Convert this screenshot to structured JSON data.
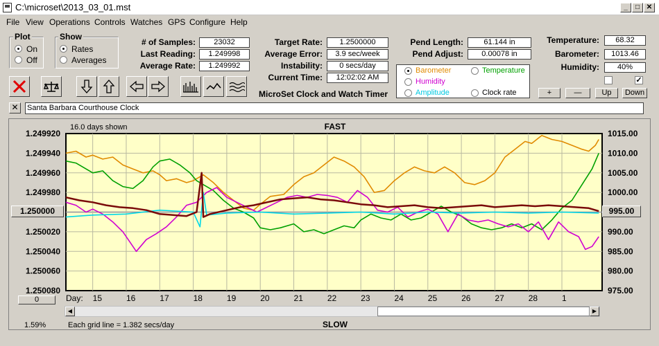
{
  "window": {
    "title": "C:\\microset\\2013_03_01.mst"
  },
  "menu": [
    "File",
    "View",
    "Operations",
    "Controls",
    "Watches",
    "GPS",
    "Configure",
    "Help"
  ],
  "plot_group": {
    "title": "Plot",
    "on": "On",
    "off": "Off",
    "selected": "On"
  },
  "show_group": {
    "title": "Show",
    "rates": "Rates",
    "averages": "Averages",
    "selected": "Rates"
  },
  "stats": {
    "samples_label": "# of Samples:",
    "samples": "23032",
    "last_label": "Last Reading:",
    "last": "1.249998",
    "avg_label": "Average Rate:",
    "avg": "1.249992",
    "target_label": "Target Rate:",
    "target": "1.2500000",
    "averr_label": "Average Error:",
    "averr": "3.9 sec/week",
    "instab_label": "Instability:",
    "instab": "0 secs/day",
    "time_label": "Current Time:",
    "time": "12:02:02 AM",
    "pendlen_label": "Pend Length:",
    "pendlen": "61.144 in",
    "pendadj_label": "Pend Adjust:",
    "pendadj": "0.00078 in",
    "temp_label": "Temperature:",
    "temp": "68.32",
    "baro_label": "Barometer:",
    "baro": "1013.46",
    "hum_label": "Humidity:",
    "hum": "40%"
  },
  "app_subtitle": "MicroSet Clock and Watch Timer",
  "sensor_select": {
    "selected": "Barometer",
    "items": [
      {
        "label": "Barometer",
        "color": "#e08a00"
      },
      {
        "label": "Temperature",
        "color": "#00a000"
      },
      {
        "label": "Humidity",
        "color": "#d000d0"
      },
      {
        "label": "Amplitude",
        "color": "#00c8e0"
      },
      {
        "label": "Clock rate",
        "color": "#000000"
      }
    ]
  },
  "scale_buttons": {
    "plus": "+",
    "minus": "—",
    "up": "Up",
    "down": "Down"
  },
  "clock_name": "Santa Barbara Courthouse Clock",
  "chart_data": {
    "type": "line",
    "title_top": "FAST",
    "title_bottom": "SLOW",
    "days_shown": "16.0 days shown",
    "grid_note": "Each grid line = 1.382 secs/day",
    "percent": "1.59%",
    "left_axis": {
      "ticks": [
        "1.249920",
        "1.249940",
        "1.249960",
        "1.249980",
        "1.250000",
        "1.250020",
        "1.250040",
        "1.250060",
        "1.250080"
      ],
      "center_button": "1.250000",
      "range": [
        1.24992,
        1.25008
      ],
      "reversed": true
    },
    "right_axis": {
      "ticks": [
        "1015.00",
        "1010.00",
        "1005.00",
        "1000.00",
        "995.00",
        "990.00",
        "985.00",
        "980.00",
        "975.00"
      ],
      "center_button": "995.00",
      "range": [
        975,
        1015
      ]
    },
    "x_prefix": "Day:",
    "x_ticks": [
      "15",
      "16",
      "17",
      "18",
      "19",
      "20",
      "21",
      "22",
      "23",
      "24",
      "25",
      "26",
      "27",
      "28",
      "1"
    ],
    "x_range": [
      14.2,
      30.2
    ],
    "bottom_left_button": "0",
    "series": [
      {
        "name": "Barometer",
        "color": "#e08a00",
        "scale": "right",
        "points": [
          [
            14.2,
            1010
          ],
          [
            14.5,
            1010.5
          ],
          [
            14.8,
            1009
          ],
          [
            15.0,
            1009.5
          ],
          [
            15.3,
            1008.5
          ],
          [
            15.6,
            1009
          ],
          [
            15.9,
            1007
          ],
          [
            16.2,
            1006
          ],
          [
            16.5,
            1005
          ],
          [
            16.8,
            1005.5
          ],
          [
            17.0,
            1004.5
          ],
          [
            17.2,
            1003
          ],
          [
            17.5,
            1003.5
          ],
          [
            17.8,
            1002.5
          ],
          [
            18.0,
            1003
          ],
          [
            18.3,
            1004.5
          ],
          [
            18.6,
            1002.5
          ],
          [
            18.9,
            1000
          ],
          [
            19.2,
            998
          ],
          [
            19.5,
            996
          ],
          [
            19.8,
            995.5
          ],
          [
            20.0,
            997
          ],
          [
            20.3,
            999
          ],
          [
            20.7,
            999.5
          ],
          [
            21.0,
            1002
          ],
          [
            21.3,
            1004
          ],
          [
            21.6,
            1005
          ],
          [
            21.9,
            1007
          ],
          [
            22.2,
            1009
          ],
          [
            22.5,
            1008
          ],
          [
            22.8,
            1006.5
          ],
          [
            23.1,
            1004
          ],
          [
            23.4,
            1000
          ],
          [
            23.7,
            1000.5
          ],
          [
            24.0,
            1003
          ],
          [
            24.3,
            1005
          ],
          [
            24.6,
            1006.5
          ],
          [
            24.9,
            1005.5
          ],
          [
            25.2,
            1005
          ],
          [
            25.5,
            1006.5
          ],
          [
            25.8,
            1005
          ],
          [
            26.1,
            1002.5
          ],
          [
            26.4,
            1002
          ],
          [
            26.7,
            1003
          ],
          [
            27.0,
            1005
          ],
          [
            27.3,
            1009
          ],
          [
            27.6,
            1011
          ],
          [
            27.9,
            1013
          ],
          [
            28.1,
            1012.5
          ],
          [
            28.4,
            1014.5
          ],
          [
            28.7,
            1013.5
          ],
          [
            29.0,
            1013
          ],
          [
            29.3,
            1012
          ],
          [
            29.6,
            1011
          ],
          [
            29.8,
            1010.5
          ],
          [
            30.0,
            1012
          ],
          [
            30.1,
            1013.5
          ]
        ]
      },
      {
        "name": "Temperature",
        "color": "#00a000",
        "scale": "right",
        "points": [
          [
            14.2,
            1008
          ],
          [
            14.5,
            1007.5
          ],
          [
            14.8,
            1006
          ],
          [
            15.0,
            1005
          ],
          [
            15.3,
            1005.5
          ],
          [
            15.6,
            1003
          ],
          [
            15.9,
            1001.5
          ],
          [
            16.2,
            1001
          ],
          [
            16.5,
            1003
          ],
          [
            16.8,
            1006.5
          ],
          [
            17.0,
            1008
          ],
          [
            17.3,
            1008.5
          ],
          [
            17.6,
            1007
          ],
          [
            17.9,
            1005
          ],
          [
            18.1,
            1003
          ],
          [
            18.3,
            1002
          ],
          [
            18.6,
            1000.5
          ],
          [
            18.9,
            998
          ],
          [
            19.2,
            996
          ],
          [
            19.5,
            995
          ],
          [
            19.8,
            993.5
          ],
          [
            20.0,
            991
          ],
          [
            20.3,
            990.5
          ],
          [
            20.6,
            991
          ],
          [
            21.0,
            992
          ],
          [
            21.3,
            990
          ],
          [
            21.6,
            990.5
          ],
          [
            21.9,
            989.5
          ],
          [
            22.2,
            990.5
          ],
          [
            22.5,
            991.5
          ],
          [
            22.8,
            991
          ],
          [
            23.0,
            993
          ],
          [
            23.3,
            994.5
          ],
          [
            23.6,
            993.5
          ],
          [
            23.9,
            993
          ],
          [
            24.2,
            994.5
          ],
          [
            24.5,
            993
          ],
          [
            24.8,
            993.5
          ],
          [
            25.1,
            995
          ],
          [
            25.4,
            996.5
          ],
          [
            25.7,
            995
          ],
          [
            26.0,
            994
          ],
          [
            26.3,
            992
          ],
          [
            26.6,
            991
          ],
          [
            26.9,
            990.5
          ],
          [
            27.2,
            991
          ],
          [
            27.5,
            992
          ],
          [
            27.8,
            991
          ],
          [
            28.1,
            992
          ],
          [
            28.4,
            990.5
          ],
          [
            28.7,
            993
          ],
          [
            29.0,
            996
          ],
          [
            29.3,
            998
          ],
          [
            29.6,
            1002
          ],
          [
            29.9,
            1006
          ],
          [
            30.1,
            1010
          ]
        ]
      },
      {
        "name": "Humidity",
        "color": "#d000d0",
        "scale": "left",
        "points": [
          [
            14.2,
            1.24999
          ],
          [
            14.5,
            1.249993
          ],
          [
            14.8,
            1.25
          ],
          [
            15.0,
            1.249997
          ],
          [
            15.3,
            1.250002
          ],
          [
            15.6,
            1.25001
          ],
          [
            15.9,
            1.25002
          ],
          [
            16.1,
            1.25003
          ],
          [
            16.3,
            1.25004
          ],
          [
            16.6,
            1.250028
          ],
          [
            16.9,
            1.250022
          ],
          [
            17.2,
            1.250015
          ],
          [
            17.5,
            1.250005
          ],
          [
            17.8,
            1.249993
          ],
          [
            18.1,
            1.24999
          ],
          [
            18.4,
            1.24998
          ],
          [
            18.7,
            1.249975
          ],
          [
            19.0,
            1.249985
          ],
          [
            19.3,
            1.24999
          ],
          [
            19.6,
            1.249995
          ],
          [
            19.9,
            1.25
          ],
          [
            20.2,
            1.249995
          ],
          [
            20.5,
            1.24999
          ],
          [
            20.8,
            1.249985
          ],
          [
            21.1,
            1.249983
          ],
          [
            21.4,
            1.249985
          ],
          [
            21.7,
            1.249982
          ],
          [
            22.0,
            1.249983
          ],
          [
            22.3,
            1.249985
          ],
          [
            22.6,
            1.24999
          ],
          [
            22.9,
            1.249978
          ],
          [
            23.2,
            1.249985
          ],
          [
            23.5,
            1.249998
          ],
          [
            23.8,
            1.25
          ],
          [
            24.1,
            1.249995
          ],
          [
            24.4,
            1.250005
          ],
          [
            24.7,
            1.25
          ],
          [
            25.0,
            1.249997
          ],
          [
            25.3,
            1.250002
          ],
          [
            25.6,
            1.25002
          ],
          [
            25.9,
            1.250002
          ],
          [
            26.2,
            1.250008
          ],
          [
            26.5,
            1.25001
          ],
          [
            26.8,
            1.250008
          ],
          [
            27.1,
            1.250012
          ],
          [
            27.4,
            1.250015
          ],
          [
            27.7,
            1.250012
          ],
          [
            28.0,
            1.25002
          ],
          [
            28.3,
            1.25001
          ],
          [
            28.6,
            1.250028
          ],
          [
            28.9,
            1.25001
          ],
          [
            29.2,
            1.25002
          ],
          [
            29.5,
            1.250025
          ],
          [
            29.7,
            1.250038
          ],
          [
            29.9,
            1.250035
          ],
          [
            30.1,
            1.250025
          ]
        ]
      },
      {
        "name": "Amplitude",
        "color": "#00d8e8",
        "scale": "left",
        "points": [
          [
            14.2,
            1.250005
          ],
          [
            15.0,
            1.250003
          ],
          [
            16.0,
            1.250002
          ],
          [
            17.0,
            1.249998
          ],
          [
            18.0,
            1.25
          ],
          [
            18.2,
            1.250015
          ],
          [
            18.3,
            1.24998
          ],
          [
            18.4,
            1.250003
          ],
          [
            19.0,
            1.250001
          ],
          [
            20.0,
            1.25
          ],
          [
            21.0,
            1.250002
          ],
          [
            22.0,
            1.250001
          ],
          [
            23.0,
            1.25
          ],
          [
            24.0,
            1.250002
          ],
          [
            25.0,
            1.25
          ],
          [
            26.0,
            1.250001
          ],
          [
            27.0,
            1.25
          ],
          [
            28.0,
            1.250001
          ],
          [
            29.0,
            1.25
          ],
          [
            30.1,
            1.250001
          ]
        ]
      },
      {
        "name": "Clock rate",
        "color": "#7a0a0a",
        "scale": "left",
        "points": [
          [
            14.2,
            1.249985
          ],
          [
            14.6,
            1.249988
          ],
          [
            15.0,
            1.24999
          ],
          [
            15.4,
            1.249993
          ],
          [
            15.8,
            1.249995
          ],
          [
            16.2,
            1.249996
          ],
          [
            16.6,
            1.249998
          ],
          [
            17.0,
            1.250002
          ],
          [
            17.4,
            1.250003
          ],
          [
            17.8,
            1.250004
          ],
          [
            18.1,
            1.25
          ],
          [
            18.25,
            1.24996
          ],
          [
            18.3,
            1.250005
          ],
          [
            18.5,
            1.250002
          ],
          [
            19.0,
            1.249998
          ],
          [
            19.4,
            1.249995
          ],
          [
            19.8,
            1.249993
          ],
          [
            20.2,
            1.24999
          ],
          [
            20.6,
            1.249987
          ],
          [
            21.0,
            1.249986
          ],
          [
            21.4,
            1.249985
          ],
          [
            21.8,
            1.249987
          ],
          [
            22.2,
            1.249988
          ],
          [
            22.6,
            1.24999
          ],
          [
            23.0,
            1.249992
          ],
          [
            23.4,
            1.249993
          ],
          [
            23.8,
            1.249995
          ],
          [
            24.2,
            1.249994
          ],
          [
            24.6,
            1.249993
          ],
          [
            25.0,
            1.249995
          ],
          [
            25.4,
            1.249996
          ],
          [
            25.8,
            1.249995
          ],
          [
            26.2,
            1.249994
          ],
          [
            26.6,
            1.249993
          ],
          [
            27.0,
            1.249995
          ],
          [
            27.4,
            1.249994
          ],
          [
            27.8,
            1.249993
          ],
          [
            28.2,
            1.249994
          ],
          [
            28.6,
            1.249993
          ],
          [
            29.0,
            1.249994
          ],
          [
            29.4,
            1.249995
          ],
          [
            29.8,
            1.249996
          ],
          [
            30.1,
            1.249999
          ]
        ]
      }
    ]
  }
}
